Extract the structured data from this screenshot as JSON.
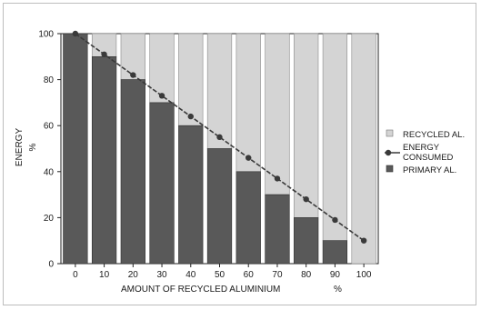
{
  "chart_data": {
    "type": "bar",
    "stacked": true,
    "categories": [
      "0",
      "10",
      "20",
      "30",
      "40",
      "50",
      "60",
      "70",
      "80",
      "90",
      "100"
    ],
    "series": [
      {
        "name": "PRIMARY AL.",
        "values": [
          100,
          90,
          80,
          70,
          60,
          50,
          40,
          30,
          20,
          10,
          0
        ],
        "color": "#595959"
      },
      {
        "name": "RECYCLED AL.",
        "values": [
          0,
          10,
          20,
          30,
          40,
          50,
          60,
          70,
          80,
          90,
          100
        ],
        "color": "#d4d4d4"
      },
      {
        "name": "ENERGY CONSUMED",
        "type": "line",
        "values": [
          100,
          91,
          82,
          73,
          64,
          55,
          46,
          37,
          28,
          19,
          10
        ],
        "color": "#3a3a3a"
      }
    ],
    "xlabel": "AMOUNT OF RECYCLED ALUMINIUM",
    "xlabel_unit": "%",
    "ylabel": "ENERGY",
    "ylabel_unit": "%",
    "ylim": [
      0,
      100
    ],
    "yticks": [
      0,
      20,
      40,
      60,
      80,
      100
    ],
    "legend": {
      "placement": "right",
      "items": [
        {
          "label": "RECYCLED AL.",
          "marker": "square-light"
        },
        {
          "label_line1": "ENERGY",
          "label_line2": "CONSUMED",
          "marker": "line-dot"
        },
        {
          "label": "PRIMARY AL.",
          "marker": "square-dark"
        }
      ]
    }
  }
}
